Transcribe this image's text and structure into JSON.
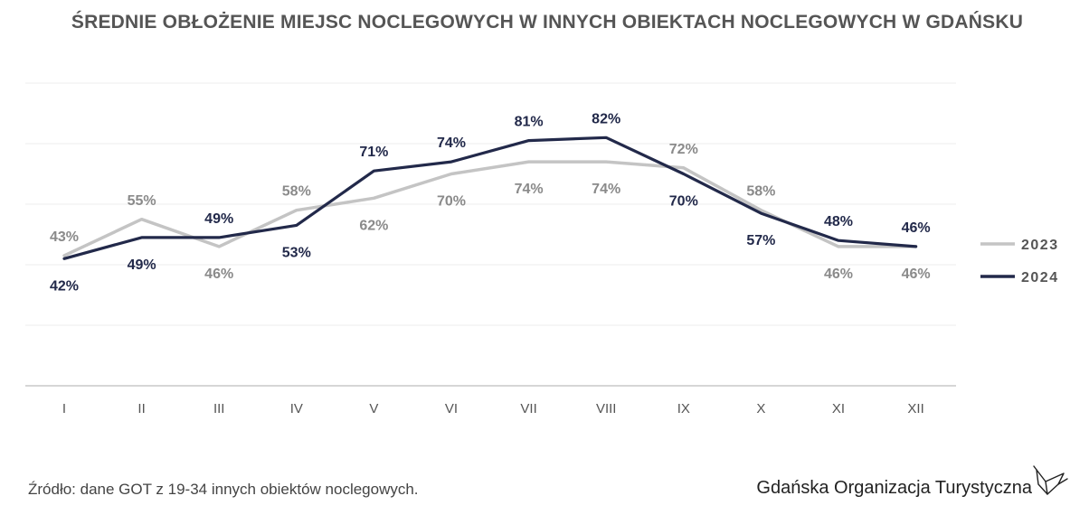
{
  "chart_data": {
    "type": "line",
    "title": "ŚREDNIE OBŁOŻENIE MIEJSC NOCLEGOWYCH W INNYCH OBIEKTACH NOCLEGOWYCH W GDAŃSKU",
    "xlabel": "",
    "ylabel": "",
    "categories": [
      "I",
      "II",
      "III",
      "IV",
      "V",
      "VI",
      "VII",
      "VIII",
      "IX",
      "X",
      "XI",
      "XII"
    ],
    "ylim": [
      0,
      100
    ],
    "grid": true,
    "legend_position": "right",
    "series": [
      {
        "name": "2023",
        "color": "#c4c4c4",
        "values": [
          43,
          55,
          46,
          58,
          62,
          70,
          74,
          74,
          72,
          58,
          46,
          46
        ],
        "labels": [
          "43%",
          "55%",
          "46%",
          "58%",
          "62%",
          "70%",
          "74%",
          "74%",
          "72%",
          "58%",
          "46%",
          "46%"
        ]
      },
      {
        "name": "2024",
        "color": "#22294a",
        "values": [
          42,
          49,
          49,
          53,
          71,
          74,
          81,
          82,
          70,
          57,
          48,
          46
        ],
        "labels": [
          "42%",
          "49%",
          "49%",
          "53%",
          "71%",
          "74%",
          "81%",
          "82%",
          "70%",
          "57%",
          "48%",
          "46%"
        ]
      }
    ]
  },
  "footer": {
    "source": "Źródło: dane GOT z 19-34 innych obiektów noclegowych.",
    "brand": "Gdańska Organizacja Turystyczna"
  }
}
